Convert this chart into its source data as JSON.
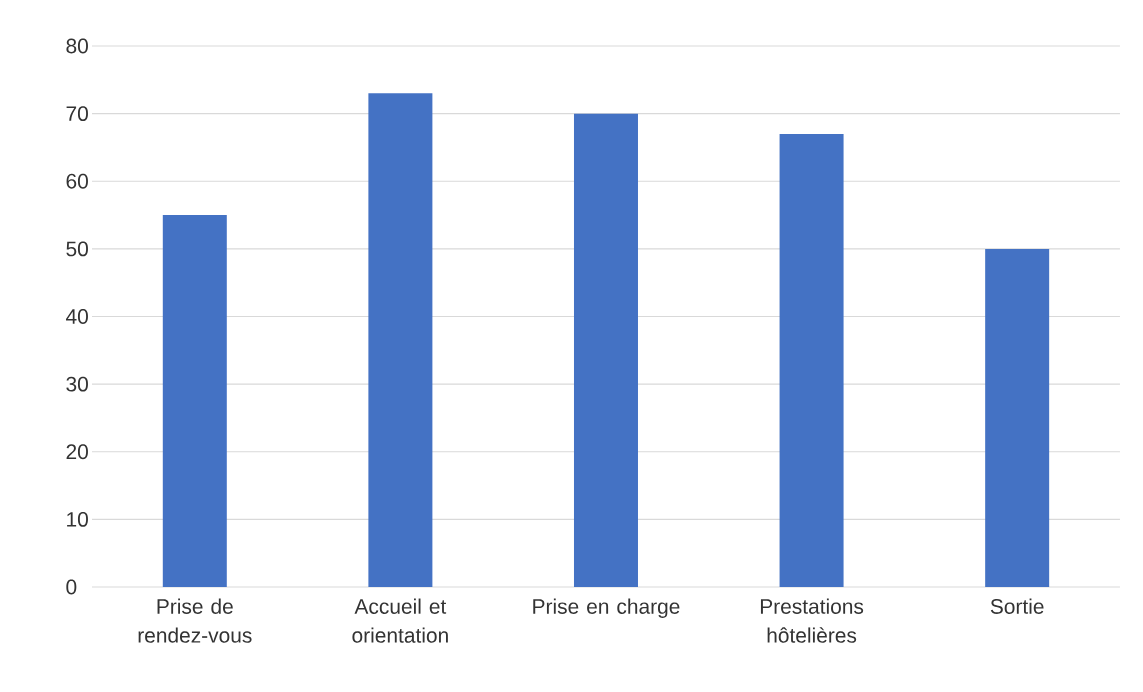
{
  "chart_data": {
    "type": "bar",
    "categories": [
      "Prise de rendez-vous",
      "Accueil et orientation",
      "Prise en charge",
      "Prestations hôtelières",
      "Sortie"
    ],
    "values": [
      55,
      73,
      70,
      67,
      50
    ],
    "color": "#4472c4",
    "ylim": [
      0,
      80
    ],
    "yticks": [
      0,
      10,
      20,
      30,
      40,
      50,
      60,
      70,
      80
    ],
    "grid": "y"
  }
}
